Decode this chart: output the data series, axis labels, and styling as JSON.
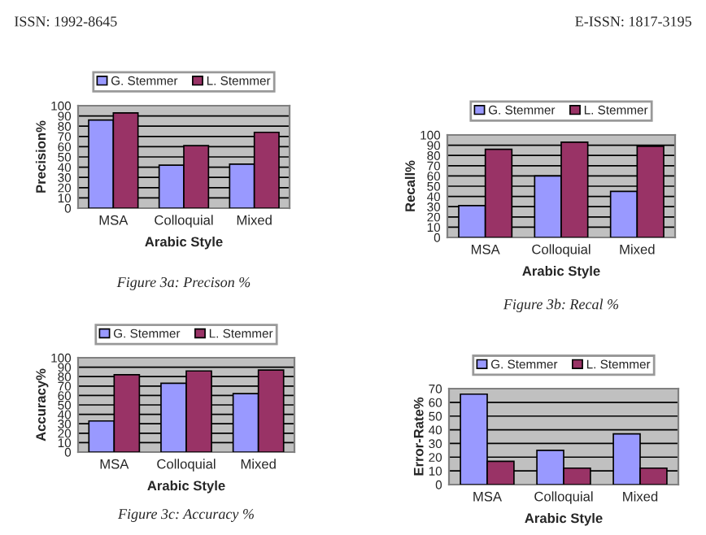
{
  "chart_data": [
    {
      "type": "bar",
      "categories": [
        "MSA",
        "Colloquial",
        "Mixed"
      ],
      "xlabel": "Arabic Style",
      "ylabel": "Precision%",
      "ylim": [
        0,
        100
      ],
      "yticks": [
        0,
        10,
        20,
        30,
        40,
        50,
        60,
        70,
        80,
        90,
        100
      ],
      "grid": "y",
      "legend": "top",
      "series": [
        {
          "name": "G. Stemmer",
          "color": "#9999ff",
          "values": [
            86,
            42,
            43
          ]
        },
        {
          "name": "L. Stemmer",
          "color": "#993366",
          "values": [
            93,
            61,
            74
          ]
        }
      ],
      "annotations": [
        "ISSN: 1992-8645",
        "E-ISSN: 1817-3195",
        "Figure 3a: Precison %"
      ]
    },
    {
      "type": "bar",
      "categories": [
        "MSA",
        "Colloquial",
        "Mixed"
      ],
      "xlabel": "Arabic Style",
      "ylabel": "Recall%",
      "ylim": [
        0,
        100
      ],
      "yticks": [
        0,
        10,
        20,
        30,
        40,
        50,
        60,
        70,
        80,
        90,
        100
      ],
      "grid": "y",
      "legend": "top",
      "series": [
        {
          "name": "G. Stemmer",
          "color": "#9999ff",
          "values": [
            31,
            60,
            45
          ]
        },
        {
          "name": "L. Stemmer",
          "color": "#993366",
          "values": [
            86,
            93,
            89
          ]
        }
      ],
      "annotations": [
        "Figure 3b: Recal %"
      ]
    },
    {
      "type": "bar",
      "categories": [
        "MSA",
        "Colloquial",
        "Mixed"
      ],
      "xlabel": "Arabic Style",
      "ylabel": "Accuracy%",
      "ylim": [
        0,
        100
      ],
      "yticks": [
        0,
        10,
        20,
        30,
        40,
        50,
        60,
        70,
        80,
        90,
        100
      ],
      "grid": "y",
      "legend": "top",
      "series": [
        {
          "name": "G. Stemmer",
          "color": "#9999ff",
          "values": [
            33,
            73,
            62
          ]
        },
        {
          "name": "L. Stemmer",
          "color": "#993366",
          "values": [
            82,
            86,
            87
          ]
        }
      ],
      "annotations": [
        "Figure 3c: Accuracy %"
      ]
    },
    {
      "type": "bar",
      "categories": [
        "MSA",
        "Colloquial",
        "Mixed"
      ],
      "xlabel": "Arabic Style",
      "ylabel": "Error-Rate%",
      "ylim": [
        0,
        70
      ],
      "yticks": [
        0,
        10,
        20,
        30,
        40,
        50,
        60,
        70
      ],
      "grid": "y",
      "legend": "top",
      "series": [
        {
          "name": "G. Stemmer",
          "color": "#9999ff",
          "values": [
            66,
            25,
            37
          ]
        },
        {
          "name": "L. Stemmer",
          "color": "#993366",
          "values": [
            17,
            12,
            12
          ]
        }
      ]
    }
  ]
}
